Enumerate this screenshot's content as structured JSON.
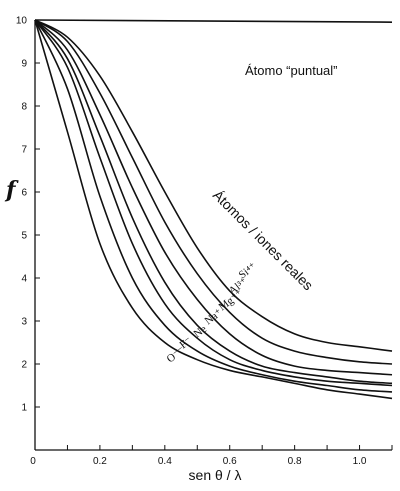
{
  "chart_data": {
    "type": "line",
    "title": "",
    "xlabel": "sen θ / λ",
    "ylabel": "f",
    "xlim": [
      0,
      1.1
    ],
    "ylim": [
      0,
      10
    ],
    "x_ticks": [
      "0",
      "0.2",
      "0.4",
      "0.6",
      "0.8",
      "1.0"
    ],
    "y_ticks": [
      "1",
      "2",
      "3",
      "4",
      "5",
      "6",
      "7",
      "8",
      "9",
      "10"
    ],
    "grid": false,
    "annotations": {
      "point_atom": "Átomo “puntual”",
      "real_atoms": "Átomos / iones  reales"
    },
    "series": [
      {
        "name": "Átomo “puntual”",
        "x": [
          0,
          1.1
        ],
        "y": [
          10,
          9.95
        ]
      },
      {
        "name": "Si⁴⁺",
        "x": [
          0,
          0.1,
          0.2,
          0.3,
          0.4,
          0.5,
          0.6,
          0.7,
          0.8,
          0.9,
          1.0,
          1.1
        ],
        "y": [
          10,
          9.6,
          8.7,
          7.4,
          6.0,
          4.7,
          3.7,
          3.1,
          2.7,
          2.5,
          2.4,
          2.3
        ]
      },
      {
        "name": "Al³⁺",
        "x": [
          0,
          0.1,
          0.2,
          0.3,
          0.4,
          0.5,
          0.6,
          0.7,
          0.8,
          0.9,
          1.0,
          1.1
        ],
        "y": [
          10,
          9.5,
          8.3,
          6.8,
          5.3,
          4.1,
          3.2,
          2.6,
          2.3,
          2.15,
          2.05,
          2.0
        ]
      },
      {
        "name": "Mg⁺⁺",
        "x": [
          0,
          0.1,
          0.2,
          0.3,
          0.4,
          0.5,
          0.6,
          0.7,
          0.8,
          0.9,
          1.0,
          1.1
        ],
        "y": [
          10,
          9.3,
          7.8,
          6.1,
          4.6,
          3.5,
          2.7,
          2.2,
          1.95,
          1.85,
          1.8,
          1.75
        ]
      },
      {
        "name": "Na⁺",
        "x": [
          0,
          0.1,
          0.2,
          0.3,
          0.4,
          0.5,
          0.6,
          0.7,
          0.8,
          0.9,
          1.0,
          1.1
        ],
        "y": [
          10,
          9.1,
          7.3,
          5.4,
          3.9,
          2.9,
          2.3,
          1.95,
          1.8,
          1.7,
          1.6,
          1.55
        ]
      },
      {
        "name": "Ne",
        "x": [
          0,
          0.1,
          0.2,
          0.3,
          0.4,
          0.5,
          0.6,
          0.7,
          0.8,
          0.9,
          1.0,
          1.1
        ],
        "y": [
          10,
          8.9,
          6.8,
          4.8,
          3.4,
          2.6,
          2.1,
          1.85,
          1.7,
          1.6,
          1.55,
          1.5
        ]
      },
      {
        "name": "F⁻",
        "x": [
          0,
          0.1,
          0.2,
          0.3,
          0.4,
          0.5,
          0.6,
          0.7,
          0.8,
          0.9,
          1.0,
          1.1
        ],
        "y": [
          10,
          8.4,
          5.9,
          4.0,
          2.9,
          2.3,
          1.95,
          1.75,
          1.6,
          1.5,
          1.4,
          1.35
        ]
      },
      {
        "name": "O⁻⁻",
        "x": [
          0,
          0.1,
          0.2,
          0.3,
          0.4,
          0.5,
          0.6,
          0.7,
          0.8,
          0.9,
          1.0,
          1.1
        ],
        "y": [
          10,
          7.4,
          4.8,
          3.3,
          2.5,
          2.1,
          1.85,
          1.7,
          1.55,
          1.4,
          1.3,
          1.2
        ]
      }
    ],
    "ion_labels": [
      "Si⁴⁺",
      "Al³⁺",
      "Mg⁺⁺",
      "Na⁺",
      "Ne",
      "F⁻",
      "O⁻⁻"
    ]
  }
}
